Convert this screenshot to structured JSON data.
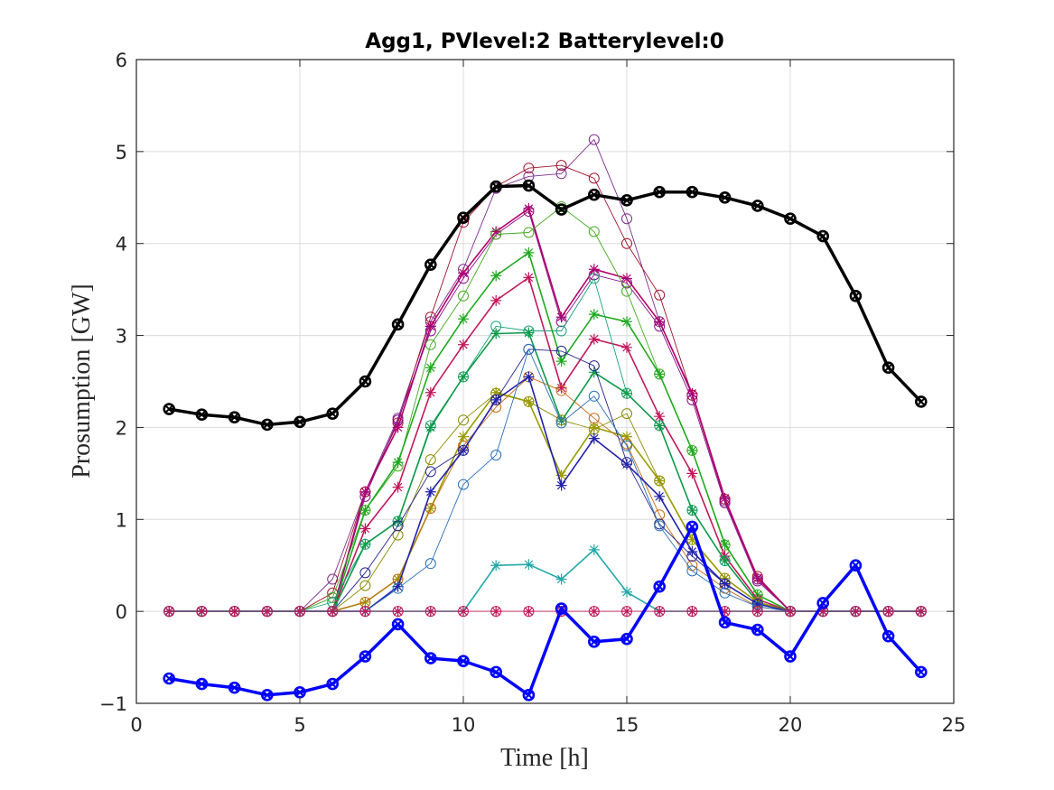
{
  "chart_data": {
    "type": "line",
    "title": "Agg1, PVlevel:2 Batterylevel:0",
    "xlabel": "Time [h]",
    "ylabel": "Prosumption [GW]",
    "xlim": [
      0,
      25
    ],
    "ylim": [
      -1,
      6
    ],
    "xticks": [
      0,
      5,
      10,
      15,
      20,
      25
    ],
    "yticks": [
      -1,
      0,
      1,
      2,
      3,
      4,
      5,
      6
    ],
    "xtick_labels": [
      "0",
      "5",
      "10",
      "15",
      "20",
      "25"
    ],
    "ytick_labels": [
      "−1",
      "0",
      "1",
      "2",
      "3",
      "4",
      "5",
      "6"
    ],
    "grid": true,
    "x": [
      1,
      2,
      3,
      4,
      5,
      6,
      7,
      8,
      9,
      10,
      11,
      12,
      13,
      14,
      15,
      16,
      17,
      18,
      19,
      20,
      21,
      22,
      23,
      24
    ],
    "series": [
      {
        "color": "#000000",
        "marker": "circle-x",
        "width": "thick",
        "values": [
          2.2,
          2.14,
          2.11,
          2.03,
          2.06,
          2.15,
          2.5,
          3.12,
          3.77,
          4.28,
          4.62,
          4.63,
          4.37,
          4.53,
          4.47,
          4.56,
          4.56,
          4.5,
          4.41,
          4.27,
          4.08,
          3.43,
          2.65,
          2.28
        ]
      },
      {
        "color": "#0000ff",
        "marker": "circle-x",
        "width": "thick",
        "values": [
          -0.73,
          -0.79,
          -0.83,
          -0.91,
          -0.88,
          -0.79,
          -0.49,
          -0.14,
          -0.51,
          -0.54,
          -0.66,
          -0.91,
          0.03,
          -0.33,
          -0.3,
          0.27,
          0.92,
          -0.12,
          -0.2,
          -0.49,
          0.09,
          0.5,
          -0.27,
          -0.66
        ]
      },
      {
        "color": "#7e2f8e",
        "marker": "circle",
        "width": "thin",
        "values": [
          0,
          0,
          0,
          0,
          0,
          0.35,
          1.3,
          2.1,
          3.15,
          3.72,
          4.6,
          4.73,
          4.76,
          5.13,
          4.27,
          3.15,
          2.35,
          1.2,
          0.35,
          0,
          0,
          0,
          0,
          0
        ]
      },
      {
        "color": "#a2142f",
        "marker": "circle",
        "width": "thin",
        "values": [
          0,
          0,
          0,
          0,
          0,
          0.2,
          1.3,
          2.05,
          3.2,
          4.23,
          4.62,
          4.82,
          4.85,
          4.71,
          4.0,
          3.44,
          2.35,
          1.22,
          0.38,
          0,
          0,
          0,
          0,
          0
        ]
      },
      {
        "color": "#b5006b",
        "marker": "star",
        "width": "med",
        "values": [
          0,
          0,
          0,
          0,
          0,
          0,
          1.3,
          2.0,
          3.1,
          3.68,
          4.13,
          4.38,
          3.2,
          3.72,
          3.62,
          3.15,
          2.37,
          1.23,
          0.36,
          0,
          0,
          0,
          0,
          0
        ]
      },
      {
        "color": "#8a0a8a",
        "marker": "circle",
        "width": "thin",
        "values": [
          0,
          0,
          0,
          0,
          0,
          0,
          1.25,
          2.08,
          3.05,
          3.62,
          4.1,
          4.35,
          3.15,
          3.66,
          3.57,
          3.1,
          2.3,
          1.18,
          0.33,
          0,
          0,
          0,
          0,
          0
        ]
      },
      {
        "color": "#44aa22",
        "marker": "circle",
        "width": "thin",
        "values": [
          0,
          0,
          0,
          0,
          0,
          0.15,
          1.1,
          1.58,
          2.9,
          3.43,
          4.1,
          4.12,
          4.4,
          4.13,
          3.48,
          2.58,
          1.75,
          0.72,
          0.18,
          0,
          0,
          0,
          0,
          0
        ]
      },
      {
        "color": "#1faa1f",
        "marker": "star",
        "width": "med",
        "values": [
          0,
          0,
          0,
          0,
          0,
          0,
          1.1,
          1.62,
          2.65,
          3.18,
          3.65,
          3.9,
          2.72,
          3.23,
          3.15,
          2.58,
          1.75,
          0.73,
          0.18,
          0,
          0,
          0,
          0,
          0
        ]
      },
      {
        "color": "#c2185b",
        "marker": "star",
        "width": "med",
        "values": [
          0,
          0,
          0,
          0,
          0,
          0,
          0.9,
          1.35,
          2.38,
          2.9,
          3.38,
          3.63,
          2.43,
          2.96,
          2.87,
          2.12,
          1.5,
          0.6,
          0.13,
          0,
          0,
          0,
          0,
          0
        ]
      },
      {
        "color": "#1aa37a",
        "marker": "circle",
        "width": "thin",
        "values": [
          0,
          0,
          0,
          0,
          0,
          0.1,
          0.73,
          0.98,
          2.02,
          2.55,
          3.1,
          3.05,
          3.05,
          3.62,
          2.37,
          2.02,
          1.1,
          0.55,
          0.1,
          0,
          0,
          0,
          0,
          0
        ]
      },
      {
        "color": "#0e9a48",
        "marker": "star",
        "width": "med",
        "values": [
          0,
          0,
          0,
          0,
          0,
          0,
          0.73,
          0.98,
          2.0,
          2.55,
          3.02,
          3.03,
          2.07,
          2.6,
          2.37,
          2.02,
          1.1,
          0.55,
          0.1,
          0,
          0,
          0,
          0,
          0
        ]
      },
      {
        "color": "#8a8a00",
        "marker": "circle",
        "width": "thin",
        "values": [
          0,
          0,
          0,
          0,
          0,
          0,
          0.28,
          0.83,
          1.65,
          2.08,
          2.37,
          2.28,
          2.08,
          1.98,
          2.15,
          1.42,
          0.78,
          0.36,
          0.1,
          0,
          0,
          0,
          0,
          0
        ]
      },
      {
        "color": "#9a9a00",
        "marker": "star",
        "width": "med",
        "values": [
          0,
          0,
          0,
          0,
          0,
          0,
          0.1,
          0.35,
          1.12,
          1.9,
          2.38,
          2.28,
          1.48,
          2.0,
          1.9,
          1.42,
          0.78,
          0.36,
          0.1,
          0,
          0,
          0,
          0,
          0
        ]
      },
      {
        "color": "#c46a12",
        "marker": "circle",
        "width": "thin",
        "values": [
          0,
          0,
          0,
          0,
          0,
          0,
          0.1,
          0.35,
          1.12,
          1.8,
          2.22,
          2.55,
          2.4,
          2.1,
          1.82,
          1.05,
          0.5,
          0.25,
          0.05,
          0,
          0,
          0,
          0,
          0
        ]
      },
      {
        "color": "#23238e",
        "marker": "circle",
        "width": "thin",
        "values": [
          0,
          0,
          0,
          0,
          0,
          0,
          0.42,
          0.93,
          1.52,
          1.75,
          2.3,
          2.85,
          2.83,
          2.67,
          1.62,
          0.95,
          0.6,
          0.3,
          0.08,
          0,
          0,
          0,
          0,
          0
        ]
      },
      {
        "color": "#2222aa",
        "marker": "star",
        "width": "med",
        "values": [
          0,
          0,
          0,
          0,
          0,
          0,
          0,
          0.27,
          1.3,
          1.75,
          2.3,
          2.55,
          1.37,
          1.88,
          1.6,
          1.25,
          0.65,
          0.3,
          0.08,
          0,
          0,
          0,
          0,
          0
        ]
      },
      {
        "color": "#2a6fb8",
        "marker": "circle",
        "width": "thin",
        "values": [
          0,
          0,
          0,
          0,
          0,
          0,
          0,
          0.25,
          0.52,
          1.38,
          1.7,
          2.85,
          2.05,
          2.34,
          1.8,
          0.93,
          0.44,
          0.2,
          0.05,
          0,
          0,
          0,
          0,
          0
        ]
      },
      {
        "color": "#22a8a8",
        "marker": "star",
        "width": "med",
        "values": [
          0,
          0,
          0,
          0,
          0,
          0,
          0,
          0,
          0,
          0,
          0.5,
          0.51,
          0.35,
          0.67,
          0.21,
          0,
          0,
          0,
          0,
          0,
          0,
          0,
          0,
          0
        ]
      },
      {
        "color": "#c2185b",
        "marker": "circle-star",
        "width": "thin",
        "values": [
          0,
          0,
          0,
          0,
          0,
          0,
          0,
          0,
          0,
          0,
          0,
          0,
          0,
          0,
          0,
          0,
          0,
          0,
          0,
          0,
          0,
          0,
          0,
          0
        ]
      }
    ]
  }
}
